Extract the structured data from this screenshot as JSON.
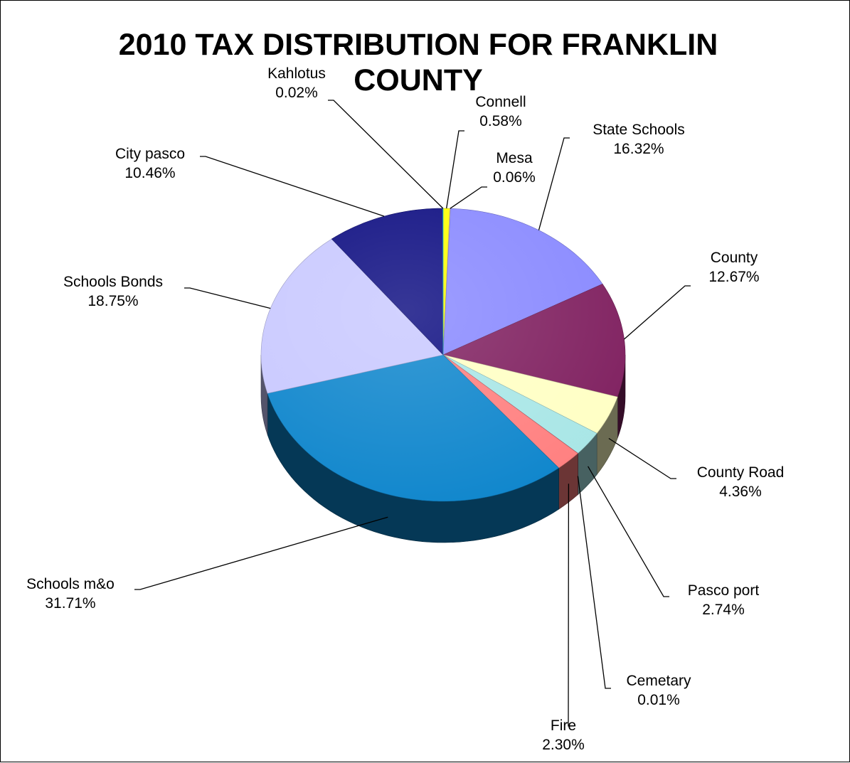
{
  "chart_data": {
    "type": "pie",
    "title_lines": [
      "2010 TAX DISTRIBUTION FOR FRANKLIN",
      "COUNTY"
    ],
    "legend": "none",
    "slices": [
      {
        "name": "Connell",
        "value": 0.58,
        "label": "0.58%",
        "color": "#ffff00"
      },
      {
        "name": "Mesa",
        "value": 0.06,
        "label": "0.06%",
        "color": "#ffe680"
      },
      {
        "name": "State Schools",
        "value": 16.32,
        "label": "16.32%",
        "color": "#8888ff"
      },
      {
        "name": "County",
        "value": 12.67,
        "label": "12.67%",
        "color": "#7f1f5f"
      },
      {
        "name": "County Road",
        "value": 4.36,
        "label": "4.36%",
        "color": "#ffffc4"
      },
      {
        "name": "Pasco port",
        "value": 2.74,
        "label": "2.74%",
        "color": "#a8e6e6"
      },
      {
        "name": "Cemetary",
        "value": 0.01,
        "label": "0.01%",
        "color": "#7f1f5f"
      },
      {
        "name": "Fire",
        "value": 2.3,
        "label": "2.30%",
        "color": "#ff7f7f"
      },
      {
        "name": "Schools m&o",
        "value": 31.71,
        "label": "31.71%",
        "color": "#0d85cc"
      },
      {
        "name": "Schools Bonds",
        "value": 18.75,
        "label": "18.75%",
        "color": "#c8c8ff"
      },
      {
        "name": "City pasco",
        "value": 10.46,
        "label": "10.46%",
        "color": "#0b0b80"
      },
      {
        "name": "Kahlotus",
        "value": 0.02,
        "label": "0.02%",
        "color": "#00ffff"
      }
    ]
  }
}
